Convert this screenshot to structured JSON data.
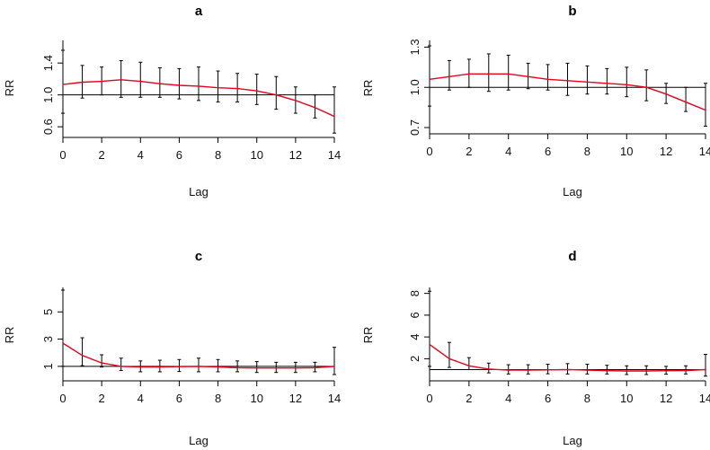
{
  "figure": {
    "background": "#ffffff",
    "curve_color": "#e8001c",
    "bar_color": "#000000"
  },
  "chart_data": [
    {
      "type": "line",
      "title": "a",
      "xlabel": "Lag",
      "ylabel": "RR",
      "xlim": [
        0,
        14
      ],
      "ylim": [
        0.5,
        1.65
      ],
      "x_ticks": [
        0,
        2,
        4,
        6,
        8,
        10,
        12,
        14
      ],
      "y_ticks": [
        0.6,
        1.0,
        1.4
      ],
      "y_tick_labels": [
        "0.6",
        "1.0",
        "1.4"
      ],
      "reference_line": 1.0,
      "x": [
        0,
        1,
        2,
        3,
        4,
        5,
        6,
        7,
        8,
        9,
        10,
        11,
        12,
        13,
        14
      ],
      "series": [
        {
          "name": "RR",
          "values": [
            1.13,
            1.16,
            1.17,
            1.19,
            1.17,
            1.14,
            1.12,
            1.11,
            1.09,
            1.08,
            1.05,
            1.0,
            0.93,
            0.84,
            0.73
          ]
        }
      ],
      "ci_lower": [
        0.77,
        0.96,
        1.0,
        0.97,
        0.97,
        0.97,
        0.95,
        0.93,
        0.91,
        0.91,
        0.88,
        0.82,
        0.77,
        0.71,
        0.52
      ],
      "ci_upper": [
        1.56,
        1.37,
        1.35,
        1.43,
        1.41,
        1.34,
        1.33,
        1.35,
        1.3,
        1.27,
        1.26,
        1.23,
        1.1,
        1.0,
        1.1
      ]
    },
    {
      "type": "line",
      "title": "b",
      "xlabel": "Lag",
      "ylabel": "RR",
      "xlim": [
        0,
        14
      ],
      "ylim": [
        0.68,
        1.33
      ],
      "x_ticks": [
        0,
        2,
        4,
        6,
        8,
        10,
        12,
        14
      ],
      "y_ticks": [
        0.7,
        1.0,
        1.3
      ],
      "y_tick_labels": [
        "0.7",
        "1.0",
        "1.3"
      ],
      "reference_line": 1.0,
      "x": [
        0,
        1,
        2,
        3,
        4,
        5,
        6,
        7,
        8,
        9,
        10,
        11,
        12,
        13,
        14
      ],
      "series": [
        {
          "name": "RR",
          "values": [
            1.06,
            1.08,
            1.1,
            1.1,
            1.1,
            1.08,
            1.06,
            1.05,
            1.04,
            1.03,
            1.02,
            1.0,
            0.95,
            0.89,
            0.83
          ]
        }
      ],
      "ci_lower": [
        0.86,
        0.98,
        1.0,
        0.97,
        0.98,
        0.99,
        0.98,
        0.94,
        0.95,
        0.95,
        0.93,
        0.9,
        0.88,
        0.82,
        0.71
      ],
      "ci_upper": [
        1.31,
        1.2,
        1.21,
        1.25,
        1.24,
        1.18,
        1.17,
        1.18,
        1.16,
        1.14,
        1.15,
        1.13,
        1.03,
        1.0,
        1.03
      ]
    },
    {
      "type": "line",
      "title": "c",
      "xlabel": "Lag",
      "ylabel": "RR",
      "xlim": [
        0,
        14
      ],
      "ylim": [
        0.2,
        6.6
      ],
      "x_ticks": [
        0,
        2,
        4,
        6,
        8,
        10,
        12,
        14
      ],
      "y_ticks": [
        1,
        3,
        5
      ],
      "y_tick_labels": [
        "1",
        "3",
        "5"
      ],
      "reference_line": 1,
      "x": [
        0,
        1,
        2,
        3,
        4,
        5,
        6,
        7,
        8,
        9,
        10,
        11,
        12,
        13,
        14
      ],
      "series": [
        {
          "name": "RR",
          "values": [
            2.7,
            1.8,
            1.25,
            1.0,
            0.95,
            0.95,
            0.98,
            1.0,
            0.95,
            0.9,
            0.88,
            0.88,
            0.88,
            0.9,
            1.0
          ]
        }
      ],
      "ci_lower": [
        1.0,
        1.05,
        0.95,
        0.7,
        0.6,
        0.6,
        0.62,
        0.6,
        0.6,
        0.6,
        0.55,
        0.55,
        0.55,
        0.6,
        0.4
      ],
      "ci_upper": [
        6.6,
        3.1,
        1.85,
        1.6,
        1.4,
        1.45,
        1.5,
        1.6,
        1.5,
        1.4,
        1.35,
        1.3,
        1.3,
        1.3,
        2.4
      ]
    },
    {
      "type": "line",
      "title": "d",
      "xlabel": "Lag",
      "ylabel": "RR",
      "xlim": [
        0,
        14
      ],
      "ylim": [
        0.3,
        8.3
      ],
      "x_ticks": [
        0,
        2,
        4,
        6,
        8,
        10,
        12,
        14
      ],
      "y_ticks": [
        2,
        4,
        6,
        8
      ],
      "y_tick_labels": [
        "2",
        "4",
        "6",
        "8"
      ],
      "reference_line": 1,
      "x": [
        0,
        1,
        2,
        3,
        4,
        5,
        6,
        7,
        8,
        9,
        10,
        11,
        12,
        13,
        14
      ],
      "series": [
        {
          "name": "RR",
          "values": [
            3.3,
            2.0,
            1.35,
            1.05,
            0.95,
            0.95,
            0.98,
            1.0,
            0.95,
            0.9,
            0.88,
            0.88,
            0.9,
            0.92,
            1.0
          ]
        }
      ],
      "ci_lower": [
        1.3,
        1.2,
        1.0,
        0.7,
        0.6,
        0.6,
        0.62,
        0.6,
        0.6,
        0.6,
        0.55,
        0.55,
        0.58,
        0.6,
        0.4
      ],
      "ci_upper": [
        8.2,
        3.5,
        2.1,
        1.6,
        1.45,
        1.45,
        1.5,
        1.55,
        1.5,
        1.4,
        1.35,
        1.35,
        1.3,
        1.35,
        2.4
      ]
    }
  ]
}
